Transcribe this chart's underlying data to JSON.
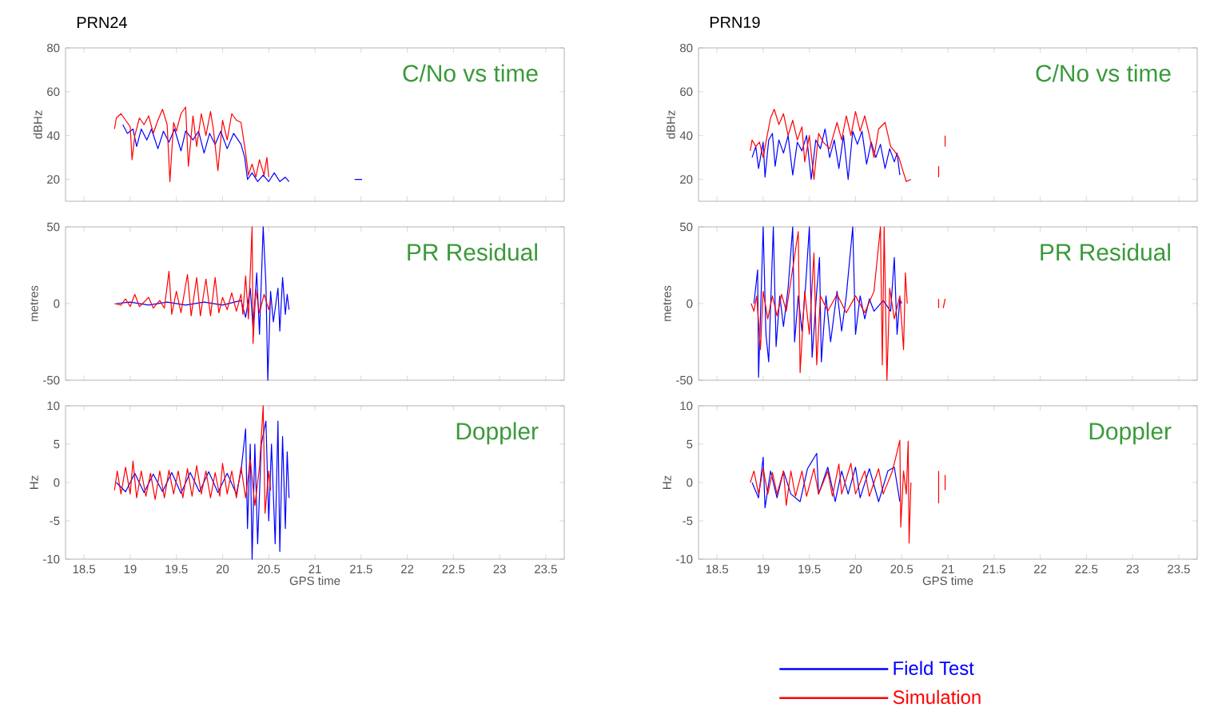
{
  "chart_data": [
    {
      "type": "line",
      "title": "PRN24",
      "ylabel": "dBHz",
      "xlim": [
        18.3,
        23.7
      ],
      "ylim": [
        10,
        80
      ],
      "xticks": [
        18.5,
        19,
        19.5,
        20,
        20.5,
        21,
        21.5,
        22,
        22.5,
        23,
        23.5
      ],
      "yticks": [
        20,
        40,
        60,
        80
      ],
      "tick_labels": "y",
      "annotations": [
        "C/No vs time"
      ],
      "series": [
        {
          "color": "#0000ff",
          "x": [
            18.92,
            18.97,
            19.03,
            19.07,
            19.12,
            19.18,
            19.23,
            19.3,
            19.36,
            19.42,
            19.48,
            19.55,
            19.6,
            19.68,
            19.74,
            19.8,
            19.86,
            19.92,
            19.98,
            20.05,
            20.12,
            20.2,
            20.24,
            20.27,
            20.32,
            20.38,
            20.44,
            20.5,
            20.56,
            20.62,
            20.68,
            20.72,
            21.0,
            21.43,
            21.51
          ],
          "values": [
            45,
            41,
            43,
            35,
            43,
            38,
            43,
            34,
            42,
            37,
            43,
            33,
            42,
            38,
            42,
            32,
            41,
            36,
            42,
            34,
            41,
            36,
            30,
            20,
            23,
            19,
            22,
            19,
            23,
            19,
            21,
            19,
            null,
            20,
            20
          ]
        },
        {
          "color": "#ff0000",
          "x": [
            18.83,
            18.85,
            18.9,
            18.95,
            19.0,
            19.02,
            19.05,
            19.1,
            19.15,
            19.2,
            19.25,
            19.3,
            19.35,
            19.4,
            19.43,
            19.47,
            19.5,
            19.55,
            19.6,
            19.63,
            19.68,
            19.72,
            19.77,
            19.82,
            19.87,
            19.9,
            19.95,
            20.0,
            20.05,
            20.1,
            20.15,
            20.2,
            20.25,
            20.28,
            20.32,
            20.36,
            20.4,
            20.45,
            20.48,
            20.5
          ],
          "values": [
            43,
            48,
            50,
            47,
            44,
            29,
            40,
            48,
            45,
            49,
            41,
            47,
            52,
            45,
            19,
            46,
            42,
            50,
            53,
            26,
            49,
            35,
            50,
            40,
            51,
            43,
            24,
            47,
            38,
            50,
            47,
            46,
            32,
            22,
            27,
            21,
            29,
            22,
            30,
            21
          ]
        }
      ]
    },
    {
      "type": "line",
      "title": "PRN19",
      "ylabel": "dBHz",
      "xlim": [
        18.3,
        23.7
      ],
      "ylim": [
        10,
        80
      ],
      "xticks": [
        18.5,
        19,
        19.5,
        20,
        20.5,
        21,
        21.5,
        22,
        22.5,
        23,
        23.5
      ],
      "yticks": [
        20,
        40,
        60,
        80
      ],
      "tick_labels": "y",
      "annotations": [
        "C/No vs time"
      ],
      "series": [
        {
          "color": "#0000ff",
          "x": [
            18.88,
            18.92,
            18.95,
            19.0,
            19.02,
            19.06,
            19.1,
            19.13,
            19.17,
            19.22,
            19.27,
            19.32,
            19.37,
            19.42,
            19.47,
            19.52,
            19.57,
            19.62,
            19.67,
            19.72,
            19.77,
            19.82,
            19.87,
            19.92,
            19.97,
            20.02,
            20.07,
            20.12,
            20.17,
            20.22,
            20.27,
            20.32,
            20.37,
            20.42,
            20.45,
            20.48
          ],
          "values": [
            30,
            35,
            25,
            37,
            21,
            38,
            41,
            26,
            38,
            32,
            40,
            22,
            37,
            33,
            40,
            20,
            38,
            34,
            43,
            30,
            38,
            25,
            40,
            20,
            42,
            36,
            42,
            27,
            37,
            30,
            36,
            25,
            34,
            28,
            32,
            22
          ]
        },
        {
          "color": "#ff0000",
          "x": [
            18.86,
            18.88,
            18.92,
            18.96,
            19.0,
            19.03,
            19.08,
            19.12,
            19.17,
            19.22,
            19.27,
            19.32,
            19.37,
            19.42,
            19.45,
            19.5,
            19.55,
            19.6,
            19.65,
            19.72,
            19.8,
            19.85,
            19.9,
            19.95,
            20.0,
            20.05,
            20.1,
            20.15,
            20.2,
            20.25,
            20.32,
            20.38,
            20.42,
            20.47,
            20.52,
            20.55,
            20.6,
            20.75,
            20.9,
            20.9,
            20.93,
            20.97,
            20.97
          ],
          "values": [
            33,
            38,
            35,
            37,
            30,
            37,
            48,
            52,
            45,
            50,
            40,
            47,
            38,
            44,
            28,
            40,
            20,
            41,
            37,
            34,
            46,
            38,
            49,
            40,
            51,
            42,
            49,
            40,
            30,
            43,
            46,
            35,
            33,
            30,
            23,
            19,
            20,
            null,
            21,
            26,
            null,
            35,
            40
          ]
        }
      ]
    },
    {
      "type": "line",
      "ylabel": "metres",
      "xlim": [
        18.3,
        23.7
      ],
      "ylim": [
        -50,
        50
      ],
      "xticks": [
        18.5,
        19,
        19.5,
        20,
        20.5,
        21,
        21.5,
        22,
        22.5,
        23,
        23.5
      ],
      "yticks": [
        -50,
        0,
        50
      ],
      "tick_labels": "y",
      "annotations": [
        "PR Residual"
      ],
      "series": [
        {
          "color": "#0000ff",
          "x": [
            18.85,
            19.0,
            19.2,
            19.4,
            19.6,
            19.8,
            20.0,
            20.2,
            20.25,
            20.3,
            20.33,
            20.37,
            20.4,
            20.44,
            20.47,
            20.49,
            20.52,
            20.55,
            20.6,
            20.62,
            20.65,
            20.68,
            20.7,
            20.72
          ],
          "values": [
            0,
            1,
            -1,
            1,
            -1,
            1,
            -1,
            2,
            -9,
            10,
            -16,
            20,
            -20,
            50,
            12,
            -50,
            8,
            -12,
            10,
            -18,
            17,
            -7,
            6,
            -4
          ]
        },
        {
          "color": "#ff0000",
          "x": [
            18.83,
            18.9,
            18.95,
            19.0,
            19.05,
            19.1,
            19.2,
            19.25,
            19.32,
            19.37,
            19.42,
            19.45,
            19.5,
            19.55,
            19.62,
            19.66,
            19.72,
            19.76,
            19.82,
            19.87,
            19.92,
            19.96,
            20.0,
            20.05,
            20.1,
            20.15,
            20.2,
            20.22,
            20.25,
            20.28,
            20.32,
            20.33,
            20.36,
            20.4,
            20.45,
            20.5,
            20.52
          ],
          "values": [
            0,
            -1,
            3,
            -2,
            6,
            -2,
            4,
            -3,
            2,
            -3,
            21,
            -7,
            8,
            -6,
            19,
            -8,
            17,
            -8,
            16,
            -8,
            17,
            -6,
            4,
            -4,
            7,
            -5,
            6,
            -7,
            18,
            -10,
            50,
            -26,
            9,
            -6,
            6,
            -4,
            2
          ]
        }
      ]
    },
    {
      "type": "line",
      "ylabel": "metres",
      "xlim": [
        18.3,
        23.7
      ],
      "ylim": [
        -50,
        50
      ],
      "xticks": [
        18.5,
        19,
        19.5,
        20,
        20.5,
        21,
        21.5,
        22,
        22.5,
        23,
        23.5
      ],
      "yticks": [
        -50,
        0,
        50
      ],
      "tick_labels": "y",
      "annotations": [
        "PR Residual"
      ],
      "series": [
        {
          "color": "#0000ff",
          "x": [
            18.9,
            18.94,
            18.95,
            18.98,
            19.0,
            19.03,
            19.06,
            19.09,
            19.11,
            19.14,
            19.18,
            19.22,
            19.27,
            19.32,
            19.34,
            19.38,
            19.42,
            19.46,
            19.5,
            19.53,
            19.58,
            19.61,
            19.63,
            19.68,
            19.73,
            19.8,
            19.85,
            19.9,
            19.97,
            20.0,
            20.05,
            20.1,
            20.15,
            20.2,
            20.3,
            20.38,
            20.42,
            20.45,
            20.48,
            20.5
          ],
          "values": [
            0,
            22,
            -48,
            10,
            50,
            -20,
            -38,
            15,
            50,
            -28,
            5,
            -15,
            10,
            50,
            -25,
            5,
            -18,
            12,
            50,
            -35,
            8,
            30,
            -38,
            5,
            -25,
            8,
            -18,
            5,
            50,
            -20,
            5,
            -10,
            3,
            -5,
            2,
            -5,
            30,
            -20,
            3,
            0
          ]
        },
        {
          "color": "#ff0000",
          "x": [
            18.87,
            18.9,
            18.93,
            18.97,
            19.0,
            19.05,
            19.1,
            19.15,
            19.2,
            19.25,
            19.38,
            19.4,
            19.45,
            19.5,
            19.55,
            19.58,
            19.62,
            19.7,
            19.8,
            19.9,
            20.0,
            20.1,
            20.2,
            20.27,
            20.29,
            20.31,
            20.34,
            20.37,
            20.42,
            20.48,
            20.52,
            20.54,
            20.56,
            20.75,
            20.9,
            20.9,
            20.93,
            20.95,
            20.97
          ],
          "values": [
            0,
            -5,
            5,
            -30,
            8,
            -10,
            5,
            -8,
            6,
            -5,
            47,
            -45,
            8,
            -20,
            33,
            -40,
            5,
            -5,
            6,
            -6,
            5,
            -6,
            8,
            50,
            -40,
            50,
            -50,
            10,
            -10,
            5,
            -30,
            20,
            0,
            null,
            -3,
            3,
            null,
            -3,
            3
          ]
        }
      ]
    },
    {
      "type": "line",
      "ylabel": "Hz",
      "xlabel": "GPS time",
      "xlim": [
        18.3,
        23.7
      ],
      "ylim": [
        -10,
        10
      ],
      "xticks": [
        18.5,
        19,
        19.5,
        20,
        20.5,
        21,
        21.5,
        22,
        22.5,
        23,
        23.5
      ],
      "yticks": [
        -10,
        -5,
        0,
        5,
        10
      ],
      "annotations": [
        "Doppler"
      ],
      "series": [
        {
          "color": "#0000ff",
          "x": [
            18.85,
            18.95,
            19.05,
            19.15,
            19.25,
            19.35,
            19.45,
            19.55,
            19.65,
            19.75,
            19.85,
            19.95,
            20.05,
            20.15,
            20.2,
            20.25,
            20.27,
            20.3,
            20.32,
            20.35,
            20.38,
            20.42,
            20.47,
            20.5,
            20.53,
            20.57,
            20.6,
            20.62,
            20.65,
            20.68,
            20.7,
            20.72
          ],
          "values": [
            0,
            -1.2,
            1.2,
            -1.3,
            1.1,
            -1.2,
            1.3,
            -1.4,
            1.3,
            -1.2,
            1.4,
            -1.3,
            1.2,
            -1.5,
            1.5,
            7,
            -6,
            5,
            -10,
            5,
            -8,
            5,
            8,
            -5,
            5,
            -8,
            8,
            -9,
            6,
            -6,
            4,
            -2
          ]
        },
        {
          "color": "#ff0000",
          "x": [
            18.83,
            18.86,
            18.9,
            18.95,
            19.0,
            19.03,
            19.07,
            19.12,
            19.17,
            19.22,
            19.27,
            19.32,
            19.37,
            19.42,
            19.47,
            19.52,
            19.57,
            19.62,
            19.67,
            19.72,
            19.77,
            19.82,
            19.87,
            19.92,
            19.97,
            20.0,
            20.05,
            20.1,
            20.15,
            20.2,
            20.25,
            20.3,
            20.35,
            20.4,
            20.44,
            20.46,
            20.5,
            20.52
          ],
          "values": [
            -1,
            1.5,
            -1.5,
            2,
            -1.5,
            2.8,
            -2,
            1.5,
            -1.8,
            1.2,
            -2.2,
            1.5,
            -2,
            1.6,
            -1.5,
            1.5,
            -2,
            1.8,
            -1.8,
            2.2,
            -1.5,
            1.5,
            -2,
            1.3,
            -1.8,
            2.5,
            -1.5,
            1.5,
            -2,
            2,
            -2,
            3,
            -3,
            2,
            10,
            -4,
            1.5,
            -1
          ]
        }
      ]
    },
    {
      "type": "line",
      "ylabel": "Hz",
      "xlabel": "GPS time",
      "xlim": [
        18.3,
        23.7
      ],
      "ylim": [
        -10,
        10
      ],
      "xticks": [
        18.5,
        19,
        19.5,
        20,
        20.5,
        21,
        21.5,
        22,
        22.5,
        23,
        23.5
      ],
      "yticks": [
        -10,
        -5,
        0,
        5,
        10
      ],
      "annotations": [
        "Doppler"
      ],
      "legend": "bottom",
      "series": [
        {
          "name": "Field Test",
          "color": "#0000ff",
          "x": [
            18.88,
            18.95,
            19.0,
            19.02,
            19.08,
            19.15,
            19.22,
            19.3,
            19.4,
            19.48,
            19.58,
            19.6,
            19.7,
            19.78,
            19.85,
            19.92,
            20.0,
            20.05,
            20.15,
            20.25,
            20.35,
            20.42,
            20.48
          ],
          "values": [
            0,
            -2,
            3.3,
            -3.3,
            1.5,
            -2,
            1.5,
            -1.5,
            -2.5,
            1.8,
            3.8,
            -1.5,
            2,
            -2.5,
            1.5,
            -1.5,
            2,
            -2,
            1.8,
            -2.5,
            1.5,
            2,
            -2.5
          ]
        },
        {
          "name": "Simulation",
          "color": "#ff0000",
          "x": [
            18.86,
            18.9,
            18.95,
            19.0,
            19.05,
            19.1,
            19.15,
            19.22,
            19.25,
            19.3,
            19.35,
            19.42,
            19.47,
            19.55,
            19.6,
            19.7,
            19.75,
            19.82,
            19.85,
            19.95,
            20.0,
            20.1,
            20.15,
            20.25,
            20.3,
            20.4,
            20.48,
            20.49,
            20.52,
            20.55,
            20.57,
            20.58,
            20.6,
            20.75,
            20.9,
            20.9,
            20.93,
            20.97,
            20.97
          ],
          "values": [
            0,
            1.5,
            -1.5,
            1.8,
            -1.5,
            1.3,
            -1.5,
            1.5,
            -3,
            1.5,
            -1.8,
            1.5,
            -1.8,
            1.8,
            -1.5,
            1.5,
            -1.8,
            2.4,
            -1.5,
            2.5,
            -1.5,
            1.5,
            -1.8,
            1.8,
            -1.5,
            1.5,
            5.5,
            -5.8,
            1.5,
            -1.5,
            5.4,
            -7.9,
            0,
            null,
            1.5,
            -2.7,
            null,
            1,
            -1
          ]
        }
      ]
    }
  ]
}
